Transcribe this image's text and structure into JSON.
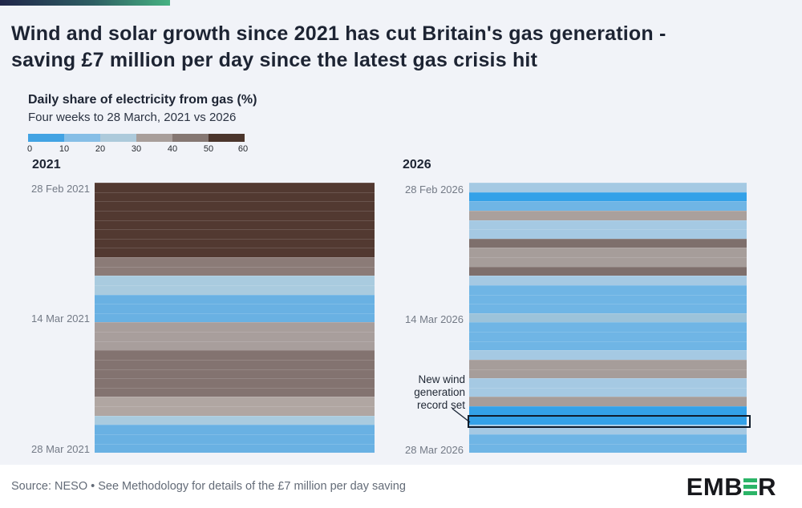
{
  "header": {
    "title_line1": "Wind and solar growth since 2021 has cut Britain's gas generation -",
    "title_line2": "saving £7 million per day since the latest gas crisis hit"
  },
  "legend": {
    "title": "Daily share of electricity from gas (%)",
    "subtitle": "Four weeks to 28 March, 2021 vs 2026",
    "ticks": [
      "0",
      "10",
      "20",
      "30",
      "40",
      "50",
      "60"
    ],
    "segments": [
      "#42a3e3",
      "#86bee6",
      "#adcadb",
      "#a89e9a",
      "#857772",
      "#4b352c"
    ]
  },
  "annotation": {
    "line1": "New wind",
    "line2": "generation",
    "line3": "record set"
  },
  "footer": {
    "source": "Source: NESO • See Methodology for details of the £7 million per day saving",
    "logo_prefix": "EMB",
    "logo_suffix": "R",
    "logo_green": "#2bb467"
  },
  "chart_data": [
    {
      "type": "heatmap",
      "title": "2021",
      "subtitle": "Daily share of electricity from gas (%)",
      "orientation": "vertical-calendar-strip",
      "colorscale": {
        "range": [
          0,
          60
        ],
        "step": 10,
        "colors": [
          "#42a3e3",
          "#86bee6",
          "#adcadb",
          "#a89e9a",
          "#857772",
          "#4b352c"
        ]
      },
      "y_axis_labels": [
        "28 Feb 2021",
        "14 Mar 2021",
        "28 Mar 2021"
      ],
      "days": [
        "28 Feb",
        "1 Mar",
        "2 Mar",
        "3 Mar",
        "4 Mar",
        "5 Mar",
        "6 Mar",
        "7 Mar",
        "8 Mar",
        "9 Mar",
        "10 Mar",
        "11 Mar",
        "12 Mar",
        "13 Mar",
        "14 Mar",
        "15 Mar",
        "16 Mar",
        "17 Mar",
        "18 Mar",
        "19 Mar",
        "20 Mar",
        "21 Mar",
        "22 Mar",
        "23 Mar",
        "24 Mar",
        "25 Mar",
        "26 Mar",
        "27 Mar",
        "28 Mar"
      ],
      "values": [
        56,
        56,
        56,
        56,
        56,
        56,
        56,
        56,
        43,
        43,
        24,
        24,
        14,
        14,
        14,
        36,
        36,
        36,
        46,
        46,
        46,
        46,
        46,
        33,
        33,
        24,
        14,
        14,
        14
      ],
      "colors": [
        "#523931",
        "#523931",
        "#523931",
        "#523931",
        "#523931",
        "#523931",
        "#523931",
        "#523931",
        "#8b7b77",
        "#8b7b77",
        "#a9cbdf",
        "#a9cbdf",
        "#69b1e3",
        "#69b1e3",
        "#69b1e3",
        "#a89e9c",
        "#a89e9c",
        "#a89e9c",
        "#837370",
        "#837370",
        "#837370",
        "#837370",
        "#837370",
        "#b0a6a2",
        "#b0a6a2",
        "#a9cbdf",
        "#69b1e3",
        "#69b1e3",
        "#69b1e3"
      ]
    },
    {
      "type": "heatmap",
      "title": "2026",
      "subtitle": "Daily share of electricity from gas (%)",
      "orientation": "vertical-calendar-strip",
      "colorscale": {
        "range": [
          0,
          60
        ],
        "step": 10,
        "colors": [
          "#42a3e3",
          "#86bee6",
          "#adcadb",
          "#a89e9a",
          "#857772",
          "#4b352c"
        ]
      },
      "y_axis_labels": [
        "28 Feb 2026",
        "14 Mar 2026",
        "28 Mar 2026"
      ],
      "days": [
        "28 Feb",
        "1 Mar",
        "2 Mar",
        "3 Mar",
        "4 Mar",
        "5 Mar",
        "6 Mar",
        "7 Mar",
        "8 Mar",
        "9 Mar",
        "10 Mar",
        "11 Mar",
        "12 Mar",
        "13 Mar",
        "14 Mar",
        "15 Mar",
        "16 Mar",
        "17 Mar",
        "18 Mar",
        "19 Mar",
        "20 Mar",
        "21 Mar",
        "22 Mar",
        "23 Mar",
        "24 Mar",
        "25 Mar",
        "26 Mar",
        "27 Mar",
        "28 Mar"
      ],
      "values": [
        23,
        8,
        14,
        36,
        23,
        23,
        46,
        36,
        36,
        46,
        23,
        14,
        14,
        14,
        21,
        14,
        14,
        14,
        23,
        36,
        36,
        23,
        23,
        36,
        8,
        8,
        23,
        14,
        14
      ],
      "colors": [
        "#a5c9e3",
        "#33a1e8",
        "#6fb5e5",
        "#aaa09c",
        "#a5c9e3",
        "#a5c9e3",
        "#7e6f6c",
        "#a69d9a",
        "#a69d9a",
        "#7e6f6c",
        "#a5c9e3",
        "#6fb5e5",
        "#6fb5e5",
        "#6fb5e5",
        "#9cc3da",
        "#6fb5e5",
        "#6fb5e5",
        "#6fb5e5",
        "#a5c9e3",
        "#a69d9a",
        "#a69d9a",
        "#a5c9e3",
        "#a5c9e3",
        "#a69d9a",
        "#33a1e8",
        "#33a1e8",
        "#a5c9e3",
        "#6fb5e5",
        "#6fb5e5"
      ],
      "highlight": {
        "index": 25,
        "day": "25 Mar",
        "note": "New wind generation record set"
      }
    }
  ]
}
